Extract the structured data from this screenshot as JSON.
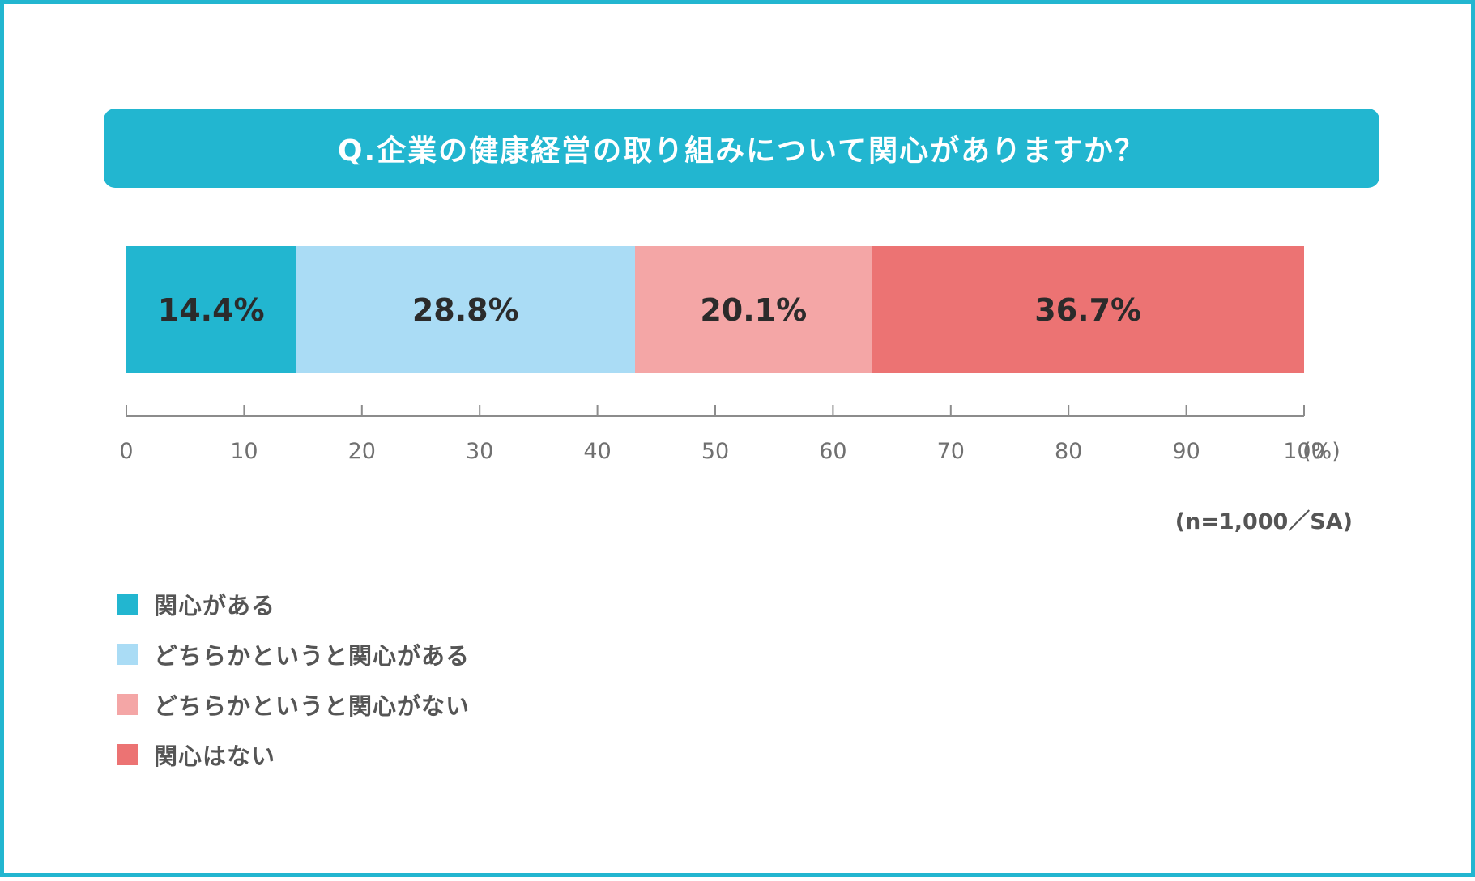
{
  "title": "Q.企業の健康経営の取り組みについて関心がありますか？",
  "sample_note": "(n=1,000／SA)",
  "axis_unit": "(%)",
  "colors": {
    "frame": "#22b6d0",
    "title_bg": "#22b6d0",
    "interested": "#22b6d0",
    "somewhat_interested": "#aadcf5",
    "somewhat_not_interested": "#f4a6a6",
    "not_interested": "#ec7373"
  },
  "chart_data": {
    "type": "bar",
    "orientation": "horizontal-stacked",
    "title": "Q.企業の健康経営の取り組みについて関心がありますか？",
    "xlim": [
      0,
      100
    ],
    "xticks": [
      0,
      10,
      20,
      30,
      40,
      50,
      60,
      70,
      80,
      90,
      100
    ],
    "xticks_labels": [
      "0",
      "10",
      "20",
      "30",
      "40",
      "50",
      "60",
      "70",
      "80",
      "90",
      "100"
    ],
    "unit": "(%)",
    "series": [
      {
        "name": "関心がある",
        "value": 14.4,
        "label": "14.4%",
        "color": "#22b6d0"
      },
      {
        "name": "どちらかというと関心がある",
        "value": 28.8,
        "label": "28.8%",
        "color": "#aadcf5"
      },
      {
        "name": "どちらかというと関心がない",
        "value": 20.1,
        "label": "20.1%",
        "color": "#f4a6a6"
      },
      {
        "name": "関心はない",
        "value": 36.7,
        "label": "36.7%",
        "color": "#ec7373"
      }
    ],
    "legend_position": "bottom-left",
    "grid": false
  }
}
